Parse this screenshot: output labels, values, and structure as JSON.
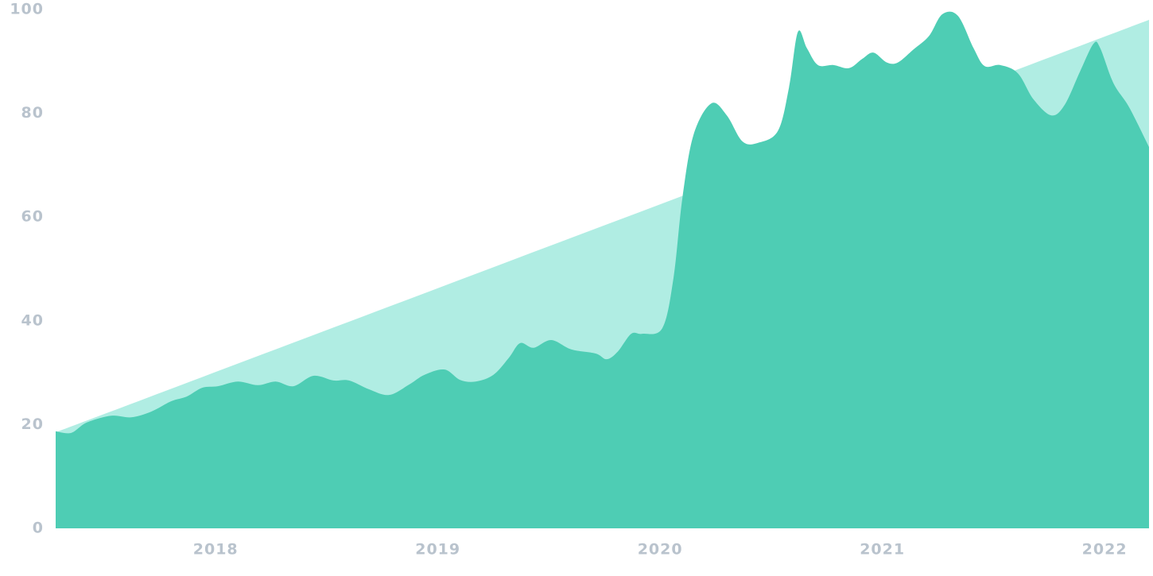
{
  "chart_data": {
    "type": "area",
    "xlim": [
      2017.28,
      2022.2
    ],
    "ylim": [
      0,
      100
    ],
    "xticks": [
      2018,
      2019,
      2020,
      2021,
      2022
    ],
    "yticks": [
      0,
      20,
      40,
      60,
      80,
      100
    ],
    "grid": false,
    "series": [
      {
        "color": "#b0ede3",
        "x": [
          2017.28,
          2022.2
        ],
        "values": [
          18.5,
          98
        ]
      },
      {
        "color": "#4ecdb4",
        "x": [
          2017.28,
          2017.35,
          2017.42,
          2017.53,
          2017.62,
          2017.71,
          2017.8,
          2017.87,
          2017.94,
          2018.01,
          2018.1,
          2018.19,
          2018.27,
          2018.35,
          2018.44,
          2018.53,
          2018.6,
          2018.69,
          2018.78,
          2018.87,
          2018.94,
          2019.03,
          2019.1,
          2019.17,
          2019.25,
          2019.32,
          2019.37,
          2019.43,
          2019.51,
          2019.6,
          2019.71,
          2019.76,
          2019.81,
          2019.87,
          2019.92,
          2020.01,
          2020.06,
          2020.1,
          2020.15,
          2020.23,
          2020.3,
          2020.37,
          2020.44,
          2020.53,
          2020.58,
          2020.62,
          2020.66,
          2020.71,
          2020.78,
          2020.85,
          2020.91,
          2020.96,
          2021.02,
          2021.07,
          2021.14,
          2021.21,
          2021.27,
          2021.34,
          2021.41,
          2021.46,
          2021.53,
          2021.61,
          2021.68,
          2021.76,
          2021.82,
          2021.89,
          2021.95,
          2021.98,
          2022.04,
          2022.11,
          2022.2
        ],
        "values": [
          18.7,
          18.4,
          20.4,
          21.7,
          21.4,
          22.5,
          24.5,
          25.4,
          27.1,
          27.4,
          28.3,
          27.6,
          28.3,
          27.4,
          29.4,
          28.5,
          28.5,
          26.8,
          25.7,
          27.7,
          29.6,
          30.6,
          28.6,
          28.3,
          29.6,
          32.9,
          35.7,
          34.8,
          36.3,
          34.5,
          33.7,
          32.6,
          34.1,
          37.5,
          37.5,
          38.6,
          48.2,
          63.6,
          75.8,
          81.9,
          79.6,
          74.6,
          74.3,
          76.6,
          85.0,
          95.7,
          92.6,
          89.3,
          89.3,
          88.7,
          90.5,
          91.7,
          89.8,
          89.8,
          92.3,
          94.9,
          99.1,
          98.8,
          92.6,
          89.1,
          89.3,
          87.7,
          82.7,
          79.6,
          81.6,
          88.1,
          93.4,
          92.6,
          85.8,
          81.2,
          73.5
        ]
      }
    ]
  }
}
